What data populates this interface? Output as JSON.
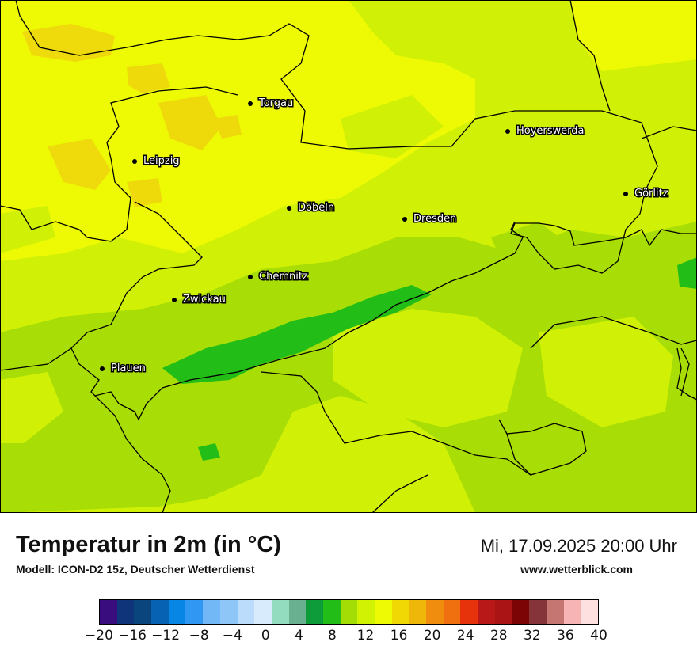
{
  "title": "Temperatur in 2m (in °C)",
  "model": "Modell: ICON-D2 15z, Deutscher Wetterdienst",
  "datetime": "Mi, 17.09.2025 20:00 Uhr",
  "website": "www.wetterblick.com",
  "cities": [
    "Torgau",
    "Leipzig",
    "Hoyerswerda",
    "Görlitz",
    "Döbeln",
    "Dresden",
    "Chemnitz",
    "Zwickau",
    "Plauen"
  ],
  "legend": {
    "colors": [
      "#3a0d7e",
      "#10347a",
      "#0b457e",
      "#0862b4",
      "#0786e6",
      "#3098f2",
      "#72b8f6",
      "#8ec6f8",
      "#bcdcfb",
      "#d8ebfc",
      "#94dcc0",
      "#68b090",
      "#0e9b3a",
      "#22bd16",
      "#a4dd05",
      "#d2f204",
      "#eef904",
      "#f0d804",
      "#f0b70b",
      "#f08d0f",
      "#f07010",
      "#e6330c",
      "#b81818",
      "#aa1414",
      "#7d0405",
      "#853439",
      "#c57672",
      "#f6b4b4",
      "#fee0e0"
    ],
    "ticks": [
      "−20",
      "−16",
      "−12",
      "−8",
      "−4",
      "0",
      "4",
      "8",
      "12",
      "16",
      "20",
      "24",
      "28",
      "32",
      "36",
      "40"
    ]
  }
}
